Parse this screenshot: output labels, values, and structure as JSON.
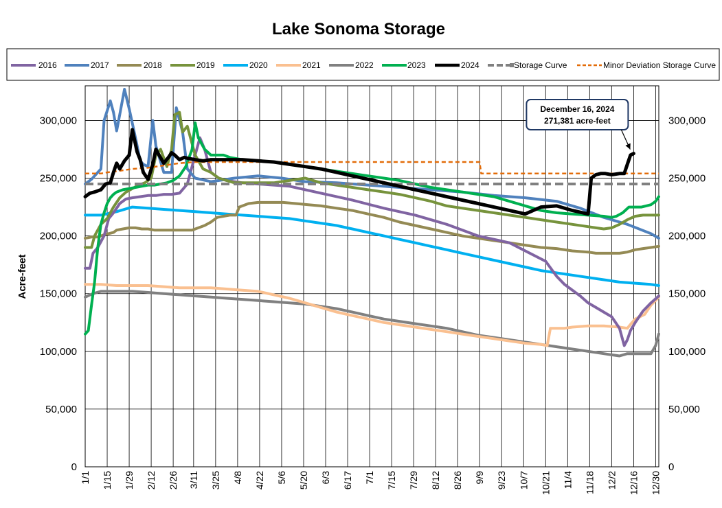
{
  "chart_data": {
    "type": "line",
    "title": "Lake Sonoma Storage",
    "ylabel": "Acre-feet",
    "xlabel": "",
    "ylim": [
      0,
      330000
    ],
    "xlim": [
      0,
      365
    ],
    "yticks": [
      0,
      50000,
      100000,
      150000,
      200000,
      250000,
      300000
    ],
    "ytick_labels": [
      "0",
      "50,000",
      "100,000",
      "150,000",
      "200,000",
      "250,000",
      "300,000"
    ],
    "xtick_labels": [
      "1/1",
      "1/15",
      "1/29",
      "2/12",
      "2/26",
      "3/11",
      "3/25",
      "4/8",
      "4/22",
      "5/6",
      "5/20",
      "6/3",
      "6/17",
      "7/1",
      "7/15",
      "7/29",
      "8/12",
      "8/26",
      "9/9",
      "9/23",
      "10/7",
      "10/21",
      "11/4",
      "11/18",
      "12/2",
      "12/16",
      "12/30"
    ],
    "xtick_days": [
      0,
      14,
      28,
      42,
      56,
      69,
      83,
      97,
      111,
      125,
      139,
      153,
      167,
      181,
      195,
      209,
      223,
      237,
      251,
      265,
      279,
      293,
      307,
      321,
      335,
      349,
      363
    ],
    "grid": true,
    "legend_position": "top",
    "series": [
      {
        "name": "2016",
        "color": "#8064a2",
        "width": 4,
        "dash": "",
        "x": [
          0,
          3,
          5,
          8,
          12,
          15,
          18,
          22,
          26,
          30,
          35,
          40,
          45,
          50,
          55,
          60,
          65,
          70,
          73,
          76,
          80,
          85,
          90,
          95,
          100,
          110,
          130,
          150,
          170,
          190,
          210,
          230,
          250,
          270,
          293,
          300,
          305,
          315,
          320,
          325,
          330,
          335,
          340,
          343,
          345,
          347,
          350,
          355,
          360,
          365
        ],
        "y": [
          172000,
          172000,
          185000,
          190000,
          200000,
          215000,
          220000,
          228000,
          232000,
          233000,
          234000,
          235000,
          235000,
          236000,
          236000,
          237000,
          245000,
          270000,
          285000,
          275000,
          255000,
          250000,
          248000,
          247000,
          246000,
          245000,
          243000,
          237000,
          231000,
          224000,
          218000,
          210000,
          200000,
          194000,
          178000,
          165000,
          158000,
          148000,
          142000,
          138000,
          134000,
          130000,
          120000,
          105000,
          110000,
          118000,
          125000,
          135000,
          142000,
          148000
        ]
      },
      {
        "name": "2017",
        "color": "#4f81bd",
        "width": 4,
        "dash": "",
        "x": [
          0,
          4,
          6,
          10,
          12,
          16,
          18,
          20,
          22,
          25,
          28,
          32,
          35,
          37,
          40,
          43,
          45,
          50,
          55,
          58,
          62,
          65,
          70,
          80,
          95,
          110,
          125,
          140,
          160,
          180,
          200,
          220,
          240,
          260,
          280,
          300,
          315,
          330,
          345,
          360,
          365
        ],
        "y": [
          245000,
          249000,
          252000,
          258000,
          300000,
          317000,
          307000,
          291000,
          305000,
          327000,
          310000,
          285000,
          265000,
          262000,
          260000,
          300000,
          278000,
          255000,
          255000,
          311000,
          290000,
          258000,
          250000,
          247000,
          250000,
          252000,
          250000,
          247000,
          246000,
          244000,
          242000,
          240000,
          238000,
          235000,
          233000,
          230000,
          224000,
          216000,
          210000,
          202000,
          198000
        ]
      },
      {
        "name": "2018",
        "color": "#948a54",
        "width": 4,
        "dash": "",
        "x": [
          0,
          4,
          6,
          8,
          10,
          12,
          15,
          18,
          20,
          24,
          28,
          32,
          36,
          40,
          44,
          48,
          52,
          56,
          60,
          64,
          68,
          72,
          76,
          80,
          84,
          88,
          92,
          96,
          98,
          104,
          110,
          118,
          126,
          134,
          142,
          150,
          160,
          170,
          180,
          190,
          200,
          210,
          220,
          230,
          240,
          250,
          260,
          270,
          280,
          290,
          300,
          310,
          320,
          325,
          330,
          335,
          340,
          345,
          350,
          355,
          360,
          365
        ],
        "y": [
          198000,
          199000,
          199000,
          199000,
          200000,
          201000,
          202000,
          203000,
          205000,
          206000,
          207000,
          207000,
          206000,
          206000,
          205000,
          205000,
          205000,
          205000,
          205000,
          205000,
          205000,
          207000,
          209000,
          212000,
          216000,
          217000,
          218000,
          218000,
          225000,
          228000,
          229000,
          229000,
          229000,
          228000,
          227000,
          226000,
          224000,
          222000,
          219000,
          216000,
          212000,
          209000,
          206000,
          203000,
          200000,
          198000,
          196000,
          194000,
          192000,
          190000,
          189000,
          187000,
          186000,
          185000,
          185000,
          185000,
          185000,
          186000,
          188000,
          189000,
          190000,
          191000
        ]
      },
      {
        "name": "2019",
        "color": "#77933c",
        "width": 4,
        "dash": "",
        "x": [
          0,
          4,
          6,
          10,
          14,
          18,
          22,
          26,
          30,
          34,
          38,
          42,
          45,
          48,
          52,
          55,
          57,
          60,
          62,
          65,
          70,
          75,
          80,
          85,
          90,
          95,
          100,
          110,
          120,
          130,
          140,
          150,
          160,
          170,
          180,
          190,
          200,
          210,
          220,
          230,
          240,
          250,
          260,
          270,
          280,
          290,
          300,
          310,
          320,
          325,
          330,
          335,
          340,
          345,
          350,
          355,
          360,
          365
        ],
        "y": [
          190000,
          190000,
          200000,
          210000,
          215000,
          225000,
          233000,
          238000,
          241000,
          244000,
          246000,
          250000,
          270000,
          275000,
          260000,
          275000,
          305000,
          307000,
          290000,
          295000,
          270000,
          258000,
          255000,
          250000,
          248000,
          246000,
          246000,
          246000,
          246000,
          248000,
          250000,
          246000,
          244000,
          242000,
          240000,
          238000,
          236000,
          233000,
          230000,
          226000,
          224000,
          222000,
          220000,
          218000,
          216000,
          214000,
          212000,
          210000,
          208000,
          207000,
          206000,
          207000,
          210000,
          214000,
          217000,
          218000,
          218000,
          218000
        ]
      },
      {
        "name": "2020",
        "color": "#00b0f0",
        "width": 4,
        "dash": "",
        "x": [
          0,
          10,
          20,
          30,
          40,
          50,
          60,
          70,
          80,
          90,
          100,
          110,
          120,
          130,
          140,
          150,
          160,
          170,
          180,
          190,
          200,
          210,
          220,
          230,
          240,
          250,
          260,
          270,
          280,
          290,
          300,
          310,
          320,
          330,
          340,
          350,
          360,
          365
        ],
        "y": [
          218000,
          218000,
          221000,
          225000,
          224000,
          223000,
          222000,
          221000,
          220000,
          219000,
          218000,
          217000,
          216000,
          215000,
          213000,
          211000,
          209000,
          206000,
          203000,
          200000,
          197000,
          194000,
          191000,
          188000,
          185000,
          182000,
          179000,
          176000,
          173000,
          170000,
          168000,
          166000,
          164000,
          162000,
          160000,
          159000,
          158000,
          157000
        ]
      },
      {
        "name": "2021",
        "color": "#fac090",
        "width": 4,
        "dash": "",
        "x": [
          0,
          10,
          20,
          30,
          40,
          50,
          60,
          70,
          80,
          90,
          100,
          110,
          120,
          130,
          140,
          150,
          160,
          170,
          180,
          190,
          200,
          210,
          220,
          230,
          240,
          250,
          260,
          270,
          280,
          290,
          294,
          296,
          300,
          305,
          310,
          320,
          330,
          340,
          345,
          348,
          350,
          353,
          356,
          360,
          365
        ],
        "y": [
          158000,
          158000,
          157000,
          157000,
          157000,
          156000,
          155000,
          155000,
          155000,
          154000,
          153000,
          152000,
          149000,
          146000,
          142000,
          138000,
          134000,
          131000,
          128000,
          125000,
          123000,
          121000,
          119000,
          117000,
          115000,
          113000,
          111000,
          109000,
          107000,
          106000,
          105000,
          120000,
          120000,
          120000,
          121000,
          122000,
          122000,
          121000,
          120000,
          125000,
          128000,
          130000,
          132000,
          140000,
          147000
        ]
      },
      {
        "name": "2022",
        "color": "#808080",
        "width": 4,
        "dash": "",
        "x": [
          0,
          5,
          10,
          20,
          30,
          40,
          50,
          60,
          70,
          80,
          90,
          100,
          110,
          120,
          130,
          140,
          150,
          160,
          170,
          180,
          190,
          200,
          210,
          220,
          230,
          240,
          250,
          260,
          270,
          280,
          290,
          300,
          310,
          320,
          330,
          335,
          340,
          345,
          350,
          355,
          358,
          360,
          363,
          365
        ],
        "y": [
          147000,
          150000,
          152000,
          152000,
          152000,
          151000,
          150000,
          149000,
          148000,
          147000,
          146000,
          145000,
          144000,
          143000,
          142000,
          141000,
          139000,
          137000,
          134000,
          131000,
          128000,
          126000,
          124000,
          122000,
          120000,
          117000,
          114000,
          112000,
          110000,
          108000,
          106000,
          104000,
          102000,
          100000,
          98000,
          97000,
          96000,
          98000,
          98000,
          98000,
          98000,
          98000,
          105000,
          115000
        ]
      },
      {
        "name": "2023",
        "color": "#00b050",
        "width": 4,
        "dash": "",
        "x": [
          0,
          2,
          4,
          6,
          8,
          10,
          12,
          14,
          16,
          18,
          20,
          24,
          28,
          32,
          36,
          40,
          44,
          48,
          52,
          56,
          60,
          64,
          68,
          70,
          72,
          76,
          80,
          84,
          88,
          92,
          96,
          100,
          110,
          120,
          130,
          140,
          150,
          160,
          170,
          180,
          190,
          200,
          210,
          220,
          230,
          240,
          250,
          260,
          270,
          280,
          290,
          300,
          310,
          320,
          330,
          335,
          338,
          342,
          346,
          350,
          354,
          357,
          360,
          363,
          365
        ],
        "y": [
          115000,
          118000,
          140000,
          160000,
          190000,
          210000,
          220000,
          228000,
          233000,
          236000,
          238000,
          240000,
          241000,
          242000,
          243000,
          244000,
          244000,
          245000,
          246000,
          248000,
          252000,
          260000,
          275000,
          298000,
          285000,
          275000,
          270000,
          270000,
          270000,
          268000,
          267000,
          266000,
          265000,
          264000,
          262000,
          260000,
          258000,
          256000,
          254000,
          252000,
          250000,
          248000,
          245000,
          242000,
          240000,
          238000,
          236000,
          234000,
          230000,
          226000,
          222000,
          220000,
          219000,
          218000,
          217000,
          216000,
          217000,
          220000,
          225000,
          225000,
          225000,
          226000,
          227000,
          230000,
          234000
        ]
      },
      {
        "name": "2024",
        "color": "#000000",
        "width": 5,
        "dash": "",
        "x": [
          0,
          3,
          6,
          10,
          13,
          16,
          18,
          20,
          22,
          25,
          28,
          30,
          33,
          35,
          37,
          40,
          43,
          45,
          47,
          50,
          53,
          55,
          57,
          60,
          63,
          66,
          70,
          75,
          80,
          85,
          90,
          100,
          110,
          120,
          130,
          140,
          150,
          160,
          170,
          180,
          190,
          200,
          210,
          220,
          230,
          240,
          250,
          260,
          270,
          280,
          290,
          300,
          310,
          320,
          322,
          325,
          328,
          331,
          335,
          340,
          343,
          345,
          347,
          349
        ],
        "y": [
          234000,
          237000,
          238000,
          240000,
          245000,
          246000,
          255000,
          263000,
          258000,
          265000,
          270000,
          292000,
          273000,
          266000,
          255000,
          249000,
          262000,
          275000,
          270000,
          263000,
          268000,
          272000,
          270000,
          266000,
          268000,
          267000,
          266000,
          265000,
          266000,
          266000,
          266000,
          266000,
          265000,
          264000,
          262000,
          260000,
          258000,
          255000,
          252000,
          249000,
          246000,
          243000,
          240000,
          237000,
          234000,
          231000,
          228000,
          225000,
          222000,
          219000,
          225000,
          226000,
          222000,
          219000,
          250000,
          253000,
          254000,
          254000,
          253000,
          254000,
          254000,
          262000,
          270000,
          271381
        ]
      },
      {
        "name": "Storage Curve",
        "color": "#808080",
        "width": 4,
        "dash": "12 6",
        "x": [
          0,
          365
        ],
        "y": [
          245000,
          245000
        ]
      },
      {
        "name": "Minor Deviation Storage Curve",
        "color": "#e36c09",
        "width": 2.5,
        "dash": "6 4",
        "x": [
          0,
          10,
          14,
          20,
          30,
          40,
          50,
          60,
          70,
          80,
          90,
          100,
          110,
          120,
          130,
          140,
          150,
          160,
          170,
          180,
          190,
          200,
          210,
          220,
          230,
          240,
          250,
          251,
          252,
          365
        ],
        "y": [
          254000,
          254000,
          255000,
          256000,
          258000,
          259000,
          261000,
          263000,
          264000,
          264000,
          264000,
          264000,
          264000,
          264000,
          264000,
          264000,
          264000,
          264000,
          264000,
          264000,
          264000,
          264000,
          264000,
          264000,
          264000,
          264000,
          264000,
          264000,
          254000,
          254000
        ]
      }
    ],
    "annotation": {
      "line1": "December 16, 2024",
      "line2": "271,381 acre-feet",
      "x": 349,
      "y": 271381
    }
  }
}
